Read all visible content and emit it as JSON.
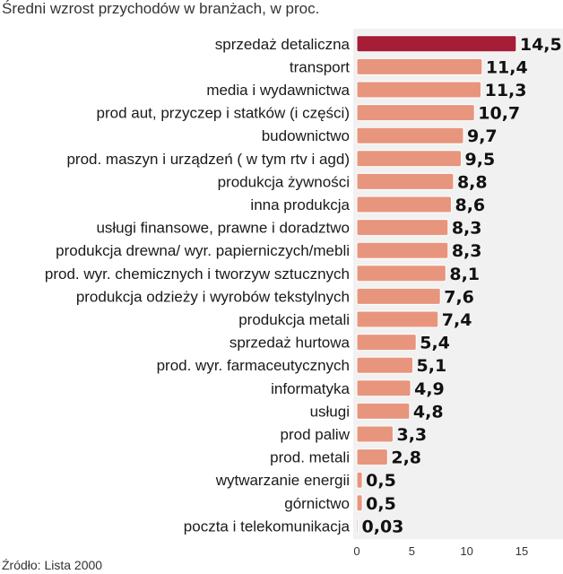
{
  "title": "Średni wzrost przychodów w branżach, w proc.",
  "source": "Źródło: Lista 2000",
  "colors": {
    "highlight": "#a51d36",
    "bar": "#e8957e",
    "bar_stroke": "#ffffff",
    "plot_bg": "#f1f1f1"
  },
  "chart_data": {
    "type": "bar",
    "orientation": "horizontal",
    "title": "Średni wzrost przychodów w branżach, w proc.",
    "xlim": [
      0,
      15
    ],
    "xticks": [
      0,
      5,
      10,
      15
    ],
    "grid": false,
    "categories": [
      "sprzedaż detaliczna",
      "transport",
      "media i wydawnictwa",
      "prod aut, przyczep i statków (i części)",
      "budownictwo",
      "prod. maszyn i urządzeń ( w tym rtv i agd)",
      "produkcja żywności",
      "inna produkcja",
      "usługi finansowe, prawne i doradztwo",
      "produkcja drewna/ wyr. papierniczych/mebli",
      "prod. wyr. chemicznych i tworzyw sztucznych",
      "produkcja odzieży i wyrobów tekstylnych",
      "produkcja metali",
      "sprzedaż hurtowa",
      "prod. wyr. farmaceutycznych",
      "informatyka",
      "usługi",
      "prod paliw",
      "prod. metali",
      "wytwarzanie energii",
      "górnictwo",
      "poczta i telekomunikacja"
    ],
    "values": [
      14.5,
      11.4,
      11.3,
      10.7,
      9.7,
      9.5,
      8.8,
      8.6,
      8.3,
      8.3,
      8.1,
      7.6,
      7.4,
      5.4,
      5.1,
      4.9,
      4.8,
      3.3,
      2.8,
      0.5,
      0.5,
      0.03
    ],
    "value_labels": [
      "14,5",
      "11,4",
      "11,3",
      "10,7",
      "9,7",
      "9,5",
      "8,8",
      "8,6",
      "8,3",
      "8,3",
      "8,1",
      "7,6",
      "7,4",
      "5,4",
      "5,1",
      "4,9",
      "4,8",
      "3,3",
      "2,8",
      "0,5",
      "0,5",
      "0,03"
    ],
    "highlight_index": 0
  }
}
